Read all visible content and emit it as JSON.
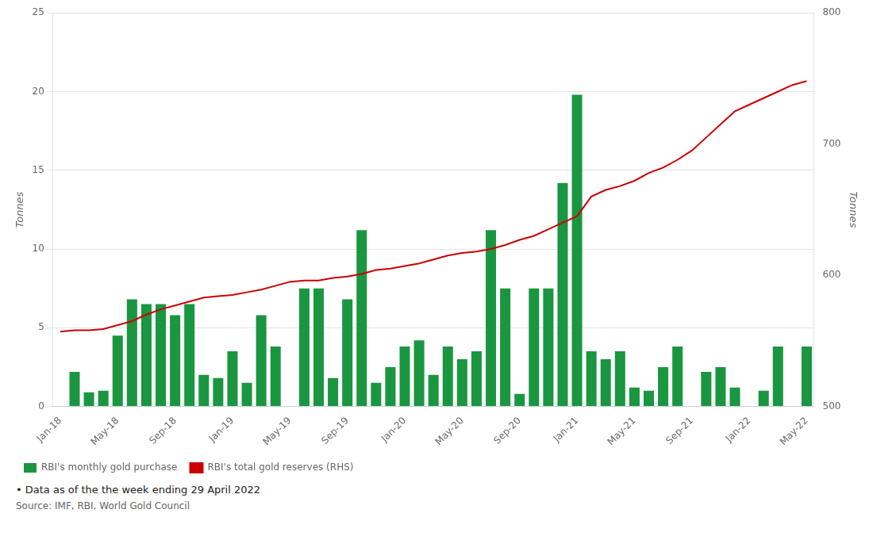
{
  "chart_data": {
    "type": "bar",
    "categories": [
      "Jan-18",
      null,
      null,
      null,
      "May-18",
      null,
      null,
      null,
      "Sep-18",
      null,
      null,
      null,
      "Jan-19",
      null,
      null,
      null,
      "May-19",
      null,
      null,
      null,
      "Sep-19",
      null,
      null,
      null,
      "Jan-20",
      null,
      null,
      null,
      "May-20",
      null,
      null,
      null,
      "Sep-20",
      null,
      null,
      null,
      "Jan-21",
      null,
      null,
      null,
      "May-21",
      null,
      null,
      null,
      "Sep-21",
      null,
      null,
      null,
      "Jan-22",
      null,
      null,
      null,
      "May-22"
    ],
    "series": [
      {
        "name": "RBI's monthly gold purchase",
        "type": "bar",
        "color": "#1a9641",
        "values": [
          0.0,
          2.2,
          0.9,
          1.0,
          4.5,
          6.8,
          6.5,
          6.5,
          5.8,
          6.5,
          2.0,
          1.8,
          3.5,
          1.5,
          5.8,
          3.8,
          0.0,
          7.5,
          7.5,
          1.8,
          6.8,
          11.2,
          1.5,
          2.5,
          3.8,
          4.2,
          2.0,
          3.8,
          3.0,
          3.5,
          11.2,
          7.5,
          0.8,
          7.5,
          7.5,
          14.2,
          19.8,
          3.5,
          3.0,
          3.5,
          1.2,
          1.0,
          2.5,
          3.8,
          0.0,
          2.2,
          2.5,
          1.2,
          0.0,
          1.0,
          3.8,
          0.0,
          3.8
        ]
      },
      {
        "name": "RBI's total gold reserves (RHS)",
        "type": "line",
        "color": "#cc0000",
        "axis": "y2",
        "marker": "none",
        "values": [
          557,
          558,
          558,
          559,
          562,
          565,
          570,
          574,
          577,
          580,
          583,
          584,
          585,
          587,
          589,
          592,
          595,
          596,
          596,
          598,
          599,
          601,
          604,
          605,
          607,
          609,
          612,
          615,
          617,
          618,
          620,
          623,
          627,
          630,
          635,
          640,
          645,
          660,
          665,
          668,
          672,
          678,
          682,
          688,
          695,
          705,
          715,
          725,
          730,
          735,
          740,
          745,
          748
        ]
      }
    ],
    "ylabel": "Tonnes",
    "y2label": "Tonnes",
    "ylim": [
      0,
      25
    ],
    "yticks": [
      0,
      5,
      10,
      15,
      20,
      25
    ],
    "y2lim": [
      500,
      800
    ],
    "y2ticks": [
      500,
      600,
      700,
      800
    ],
    "grid": true,
    "legend": "lower left",
    "annotation": "• Data as of the the week ending 29 April 2022",
    "source": "Source: IMF, RBI, World Gold Council"
  }
}
